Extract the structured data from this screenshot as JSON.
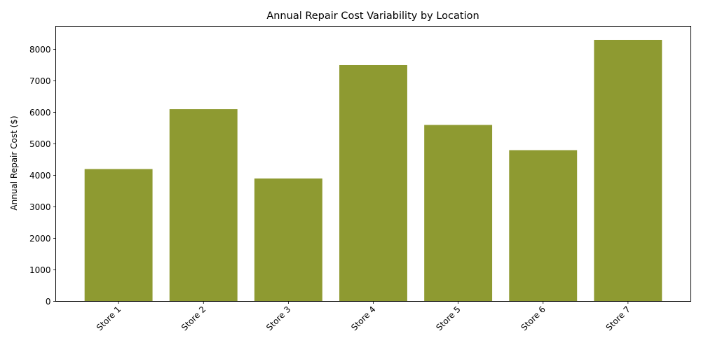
{
  "chart_data": {
    "type": "bar",
    "title": "Annual Repair Cost Variability by Location",
    "xlabel": "",
    "ylabel": "Annual Repair Cost ($)",
    "categories": [
      "Store 1",
      "Store 2",
      "Store 3",
      "Store 4",
      "Store 5",
      "Store 6",
      "Store 7"
    ],
    "values": [
      4200,
      6100,
      3900,
      7500,
      5600,
      4800,
      8300
    ],
    "ylim": [
      0,
      8733
    ],
    "yticks": [
      0,
      1000,
      2000,
      3000,
      4000,
      5000,
      6000,
      7000,
      8000
    ],
    "grid": false,
    "legend": null,
    "bar_color": "#8e9a31",
    "xtick_rotation": 45
  }
}
